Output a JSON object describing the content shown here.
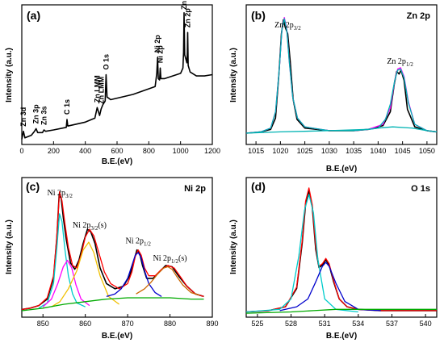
{
  "chart_data": [
    {
      "type": "line",
      "panel_label": "(a)",
      "title": "",
      "xlabel": "B.E.(eV)",
      "ylabel": "Intensity (a.u.)",
      "xlim": [
        0,
        1200
      ],
      "xticks": [
        0,
        200,
        400,
        600,
        800,
        1000,
        1200
      ],
      "peaks": [
        {
          "label": "Zn 3d",
          "x": 10
        },
        {
          "label": "Zn 3p",
          "x": 90
        },
        {
          "label": "Zn 3s",
          "x": 140
        },
        {
          "label": "C 1s",
          "x": 285
        },
        {
          "label": "Zn LMM",
          "x": 475
        },
        {
          "label": "Zn LMM",
          "x": 500
        },
        {
          "label": "O 1s",
          "x": 531
        },
        {
          "label": "Ni 2p",
          "x": 855
        },
        {
          "label": "Ni 2p",
          "x": 872
        },
        {
          "label": "Zn 2p",
          "x": 1022
        },
        {
          "label": "Zn 2p",
          "x": 1045
        }
      ],
      "series": [
        {
          "color": "#000000",
          "x": [
            0,
            10,
            20,
            60,
            80,
            90,
            100,
            130,
            140,
            150,
            200,
            280,
            285,
            290,
            400,
            460,
            475,
            490,
            500,
            510,
            525,
            531,
            537,
            560,
            700,
            840,
            850,
            855,
            860,
            868,
            872,
            876,
            900,
            1000,
            1015,
            1019,
            1022,
            1026,
            1040,
            1043,
            1045,
            1048,
            1060,
            1100,
            1150,
            1200
          ],
          "y": [
            0.04,
            0.1,
            0.05,
            0.07,
            0.1,
            0.12,
            0.09,
            0.09,
            0.11,
            0.1,
            0.11,
            0.13,
            0.19,
            0.14,
            0.17,
            0.2,
            0.28,
            0.22,
            0.27,
            0.3,
            0.33,
            0.53,
            0.36,
            0.34,
            0.38,
            0.44,
            0.54,
            0.66,
            0.5,
            0.49,
            0.58,
            0.5,
            0.5,
            0.54,
            0.58,
            0.7,
            1.0,
            0.68,
            0.62,
            0.7,
            0.85,
            0.6,
            0.55,
            0.52,
            0.52,
            0.53
          ]
        }
      ]
    },
    {
      "type": "line",
      "panel_label": "(b)",
      "title": "Zn 2p",
      "xlabel": "B.E.(eV)",
      "ylabel": "Intensity (a.u.)",
      "xlim": [
        1013,
        1052
      ],
      "xticks": [
        1015,
        1020,
        1025,
        1030,
        1035,
        1040,
        1045,
        1050
      ],
      "annotations": [
        {
          "label": "Zn 2p",
          "sub": "3/2",
          "x": 1021.5
        },
        {
          "label": "Zn 2p",
          "sub": "1/2",
          "x": 1044.5
        }
      ],
      "series": [
        {
          "color": "#000000",
          "x": [
            1013,
            1016,
            1018,
            1019,
            1019.7,
            1020.2,
            1020.6,
            1021,
            1021.5,
            1022,
            1022.6,
            1023.4,
            1025,
            1030,
            1035,
            1038,
            1041,
            1042.5,
            1043.3,
            1043.8,
            1044.3,
            1044.7,
            1045.3,
            1046,
            1047.5,
            1050,
            1052
          ],
          "y": [
            0.03,
            0.04,
            0.06,
            0.15,
            0.5,
            0.82,
            0.93,
            0.87,
            0.82,
            0.6,
            0.3,
            0.14,
            0.07,
            0.05,
            0.05,
            0.06,
            0.09,
            0.2,
            0.42,
            0.52,
            0.5,
            0.53,
            0.45,
            0.22,
            0.08,
            0.05,
            0.04
          ]
        },
        {
          "color": "#ff00ff",
          "x": [
            1013,
            1016,
            1018,
            1019,
            1019.8,
            1020.3,
            1020.8,
            1021.3,
            1021.8,
            1022.5,
            1023.5,
            1025,
            1030,
            1035,
            1038,
            1041,
            1042.5,
            1043.4,
            1044,
            1044.6,
            1045.3,
            1046.2,
            1047.5,
            1050,
            1052
          ],
          "y": [
            0.03,
            0.04,
            0.07,
            0.2,
            0.55,
            0.85,
            0.95,
            0.86,
            0.6,
            0.32,
            0.15,
            0.08,
            0.05,
            0.05,
            0.06,
            0.1,
            0.23,
            0.45,
            0.54,
            0.55,
            0.48,
            0.28,
            0.1,
            0.05,
            0.04
          ]
        },
        {
          "color": "#00b3b3",
          "x": [
            1013,
            1016,
            1018,
            1019,
            1019.8,
            1020.3,
            1020.8,
            1021.3,
            1021.8,
            1022.5,
            1023.5,
            1025,
            1030,
            1035,
            1038,
            1040,
            1043,
            1047,
            1050,
            1052
          ],
          "y": [
            0.03,
            0.04,
            0.07,
            0.2,
            0.55,
            0.85,
            0.94,
            0.85,
            0.6,
            0.32,
            0.15,
            0.08,
            0.05,
            0.05,
            0.06,
            0.07,
            0.08,
            0.07,
            0.05,
            0.04
          ]
        },
        {
          "color": "#00b3b3",
          "x": [
            1013,
            1020,
            1030,
            1038,
            1040,
            1041.5,
            1042.5,
            1043.4,
            1044,
            1044.6,
            1045.3,
            1046.2,
            1047.5,
            1050,
            1052
          ],
          "y": [
            0.03,
            0.04,
            0.05,
            0.06,
            0.07,
            0.14,
            0.26,
            0.45,
            0.53,
            0.54,
            0.47,
            0.27,
            0.1,
            0.05,
            0.04
          ]
        }
      ]
    },
    {
      "type": "line",
      "panel_label": "(c)",
      "title": "Ni 2p",
      "xlabel": "B.E.(eV)",
      "ylabel": "Intensity (a.u.)",
      "xlim": [
        845,
        890
      ],
      "xticks": [
        850,
        860,
        870,
        880,
        890
      ],
      "annotations": [
        {
          "label": "Ni 2p",
          "sub": "3/2",
          "x": 854
        },
        {
          "label": "Ni 2p",
          "sub": "3/2",
          "suffix": "(s)",
          "x": 861
        },
        {
          "label": "Ni 2p",
          "sub": "1/2",
          "x": 872.5
        },
        {
          "label": "Ni 2p",
          "sub": "1/2",
          "suffix": "(s)",
          "x": 880
        }
      ],
      "series": [
        {
          "color": "#000000",
          "x": [
            845,
            847,
            849,
            851,
            852.5,
            853.3,
            853.8,
            854.3,
            854.8,
            855.5,
            856.5,
            857.5,
            858.5,
            859.5,
            860.5,
            861.3,
            862.3,
            863.5,
            865,
            867,
            869,
            870.5,
            871.5,
            872.2,
            872.8,
            873.5,
            874.5,
            876,
            877.5,
            879,
            880.5,
            882,
            884,
            886,
            888
          ],
          "y": [
            0.04,
            0.05,
            0.07,
            0.12,
            0.28,
            0.6,
            0.92,
            0.9,
            0.75,
            0.58,
            0.4,
            0.35,
            0.42,
            0.55,
            0.66,
            0.64,
            0.55,
            0.36,
            0.24,
            0.2,
            0.22,
            0.3,
            0.42,
            0.5,
            0.48,
            0.38,
            0.28,
            0.28,
            0.33,
            0.38,
            0.37,
            0.3,
            0.22,
            0.16,
            0.14
          ]
        },
        {
          "color": "#ff0000",
          "x": [
            845,
            847,
            849,
            851,
            852.5,
            853.3,
            853.9,
            854.5,
            855.2,
            856,
            857,
            858,
            859,
            860,
            861,
            862,
            863,
            864.5,
            866,
            868,
            870,
            871,
            871.8,
            872.5,
            873.2,
            874,
            875,
            876.5,
            878,
            879.5,
            881,
            882.5,
            884,
            886,
            888
          ],
          "y": [
            0.04,
            0.05,
            0.07,
            0.13,
            0.3,
            0.62,
            0.95,
            0.88,
            0.7,
            0.52,
            0.38,
            0.36,
            0.46,
            0.6,
            0.66,
            0.61,
            0.5,
            0.33,
            0.24,
            0.2,
            0.24,
            0.33,
            0.45,
            0.5,
            0.46,
            0.36,
            0.3,
            0.3,
            0.35,
            0.38,
            0.36,
            0.29,
            0.22,
            0.16,
            0.14
          ]
        },
        {
          "color": "#00cccc",
          "x": [
            849,
            851,
            852.5,
            853.3,
            853.9,
            854.5,
            855.2,
            856,
            857,
            858,
            860
          ],
          "y": [
            0.05,
            0.09,
            0.24,
            0.52,
            0.78,
            0.72,
            0.5,
            0.3,
            0.16,
            0.09,
            0.06
          ]
        },
        {
          "color": "#ff00ff",
          "x": [
            850,
            852,
            853.5,
            854.8,
            855.8,
            856.8,
            857.8,
            859,
            861
          ],
          "y": [
            0.06,
            0.12,
            0.24,
            0.37,
            0.42,
            0.36,
            0.23,
            0.12,
            0.07
          ]
        },
        {
          "color": "#f0c000",
          "x": [
            852,
            854,
            856,
            858,
            859.5,
            860.8,
            862,
            863.5,
            865.5,
            868
          ],
          "y": [
            0.06,
            0.1,
            0.2,
            0.34,
            0.5,
            0.56,
            0.48,
            0.3,
            0.14,
            0.08
          ]
        },
        {
          "color": "#0000cc",
          "x": [
            865,
            867,
            868.5,
            870,
            871,
            871.8,
            872.5,
            873.2,
            874,
            875,
            876.5,
            878
          ],
          "y": [
            0.14,
            0.16,
            0.2,
            0.28,
            0.38,
            0.46,
            0.48,
            0.44,
            0.34,
            0.24,
            0.17,
            0.14
          ]
        },
        {
          "color": "#cc6600",
          "x": [
            872,
            874,
            875.5,
            877,
            878.5,
            879.5,
            880.5,
            881.5,
            883,
            885,
            887
          ],
          "y": [
            0.16,
            0.2,
            0.25,
            0.31,
            0.36,
            0.37,
            0.35,
            0.3,
            0.23,
            0.17,
            0.15
          ]
        },
        {
          "color": "#00aa00",
          "x": [
            845,
            850,
            855,
            860,
            865,
            870,
            875,
            880,
            885,
            888
          ],
          "y": [
            0.03,
            0.05,
            0.08,
            0.1,
            0.12,
            0.13,
            0.13,
            0.13,
            0.12,
            0.12
          ]
        }
      ]
    },
    {
      "type": "line",
      "panel_label": "(d)",
      "title": "O 1s",
      "xlabel": "B.E.(eV)",
      "ylabel": "Intensity (a.u.)",
      "xlim": [
        524,
        541
      ],
      "xticks": [
        525,
        528,
        531,
        534,
        537,
        540
      ],
      "series": [
        {
          "color": "#000000",
          "x": [
            524,
            526,
            527.5,
            528.5,
            529,
            529.3,
            529.6,
            529.9,
            530.2,
            530.5,
            530.8,
            531.1,
            531.4,
            531.8,
            532.3,
            533,
            534,
            536,
            538,
            540,
            541
          ],
          "y": [
            0.02,
            0.03,
            0.06,
            0.2,
            0.55,
            0.85,
            0.95,
            0.82,
            0.5,
            0.36,
            0.38,
            0.42,
            0.38,
            0.25,
            0.12,
            0.06,
            0.04,
            0.03,
            0.03,
            0.03,
            0.03
          ]
        },
        {
          "color": "#ff0000",
          "x": [
            524,
            526,
            527.5,
            528.5,
            529,
            529.3,
            529.6,
            529.9,
            530.2,
            530.5,
            530.8,
            531.1,
            531.4,
            531.8,
            532.3,
            533,
            534,
            536,
            538,
            540,
            541
          ],
          "y": [
            0.02,
            0.03,
            0.06,
            0.21,
            0.57,
            0.87,
            0.97,
            0.84,
            0.52,
            0.37,
            0.39,
            0.43,
            0.39,
            0.26,
            0.12,
            0.06,
            0.04,
            0.03,
            0.03,
            0.03,
            0.03
          ]
        },
        {
          "color": "#00cccc",
          "x": [
            524,
            527,
            528,
            528.7,
            529.2,
            529.6,
            530,
            530.4,
            531,
            532,
            534
          ],
          "y": [
            0.02,
            0.04,
            0.12,
            0.45,
            0.8,
            0.92,
            0.78,
            0.42,
            0.12,
            0.04,
            0.02
          ]
        },
        {
          "color": "#0000cc",
          "x": [
            527,
            528.5,
            529.5,
            530.2,
            530.8,
            531.1,
            531.4,
            532,
            532.8,
            534,
            536
          ],
          "y": [
            0.03,
            0.06,
            0.12,
            0.25,
            0.37,
            0.4,
            0.37,
            0.24,
            0.1,
            0.04,
            0.03
          ]
        },
        {
          "color": "#00aa00",
          "x": [
            524,
            528,
            530,
            532,
            535,
            538,
            541
          ],
          "y": [
            0.01,
            0.02,
            0.03,
            0.04,
            0.04,
            0.04,
            0.04
          ]
        }
      ]
    }
  ]
}
